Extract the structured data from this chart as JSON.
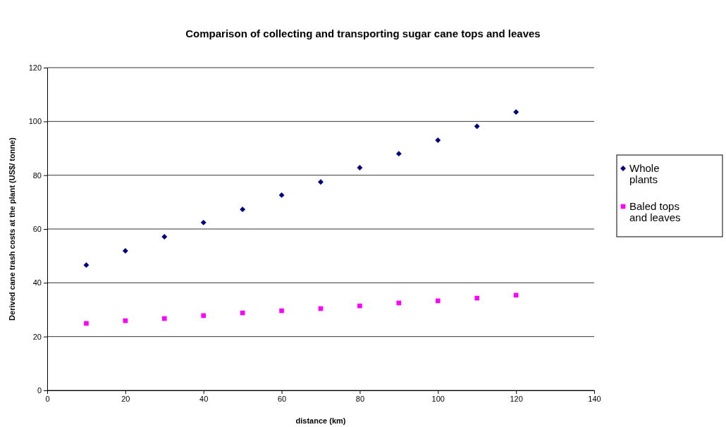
{
  "chart_data": {
    "type": "scatter",
    "title": "Comparison of collecting and transporting sugar cane tops and leaves",
    "xlabel": "distance (km)",
    "ylabel": "Derived cane trash costs at the plant (US$/ tonne)",
    "x": [
      10,
      20,
      30,
      40,
      50,
      60,
      70,
      80,
      90,
      100,
      110,
      120
    ],
    "series": [
      {
        "name": "Whole plants",
        "color": "#000080",
        "marker": "diamond",
        "values": [
          46.6,
          51.9,
          57.1,
          62.4,
          67.3,
          72.6,
          77.5,
          82.8,
          88.0,
          93.0,
          98.2,
          103.5
        ]
      },
      {
        "name": "Baled tops and leaves",
        "color": "#ff00ff",
        "marker": "square",
        "values": [
          24.9,
          25.9,
          26.7,
          27.8,
          28.8,
          29.6,
          30.4,
          31.4,
          32.5,
          33.3,
          34.3,
          35.4
        ]
      }
    ],
    "xlim": [
      0,
      140
    ],
    "xticks": [
      0,
      20,
      40,
      60,
      80,
      100,
      120,
      140
    ],
    "ylim": [
      0,
      120
    ],
    "yticks": [
      0,
      20,
      40,
      60,
      80,
      100,
      120
    ],
    "grid": "y",
    "legend": "right"
  }
}
